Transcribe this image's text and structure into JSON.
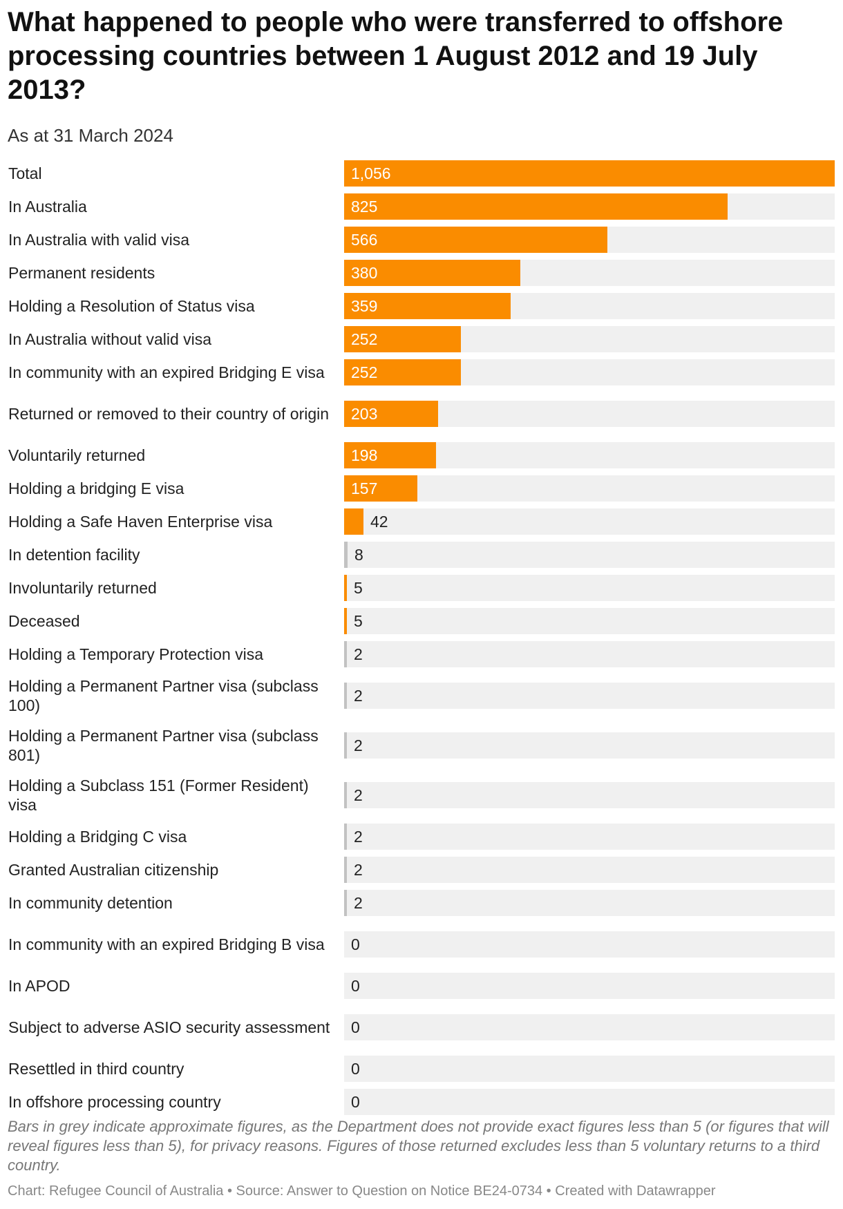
{
  "header": {
    "title": "What happened to people who were transferred to offshore processing countries between 1 August 2012 and 19 July 2013?",
    "subtitle": "As at 31 March 2024"
  },
  "colors": {
    "accent": "#fa8c00",
    "approximate": "#c2c2c2",
    "track": "#f0f0f0"
  },
  "chart_data": {
    "type": "bar",
    "orientation": "horizontal",
    "title": "What happened to people who were transferred to offshore processing countries between 1 August 2012 and 19 July 2013?",
    "subtitle": "As at 31 March 2024",
    "xlim": [
      0,
      1056
    ],
    "rows": [
      {
        "label": "Total",
        "value": 1056,
        "display": "1,056",
        "approximate": false
      },
      {
        "label": "In Australia",
        "value": 825,
        "display": "825",
        "approximate": false
      },
      {
        "label": "In Australia with valid visa",
        "value": 566,
        "display": "566",
        "approximate": false
      },
      {
        "label": "Permanent residents",
        "value": 380,
        "display": "380",
        "approximate": false
      },
      {
        "label": "Holding a Resolution of Status visa",
        "value": 359,
        "display": "359",
        "approximate": false
      },
      {
        "label": "In Australia without valid visa",
        "value": 252,
        "display": "252",
        "approximate": false
      },
      {
        "label": "In community with an expired Bridging E visa",
        "value": 252,
        "display": "252",
        "approximate": false
      },
      {
        "label": "Returned or removed to their country of origin",
        "value": 203,
        "display": "203",
        "approximate": false
      },
      {
        "label": "Voluntarily returned",
        "value": 198,
        "display": "198",
        "approximate": false
      },
      {
        "label": "Holding a bridging E visa",
        "value": 157,
        "display": "157",
        "approximate": false
      },
      {
        "label": "Holding a Safe Haven Enterprise visa",
        "value": 42,
        "display": "42",
        "approximate": false
      },
      {
        "label": "In detention facility",
        "value": 8,
        "display": "8",
        "approximate": true
      },
      {
        "label": "Involuntarily returned",
        "value": 5,
        "display": "5",
        "approximate": false
      },
      {
        "label": "Deceased",
        "value": 5,
        "display": "5",
        "approximate": false
      },
      {
        "label": "Holding a Temporary Protection visa",
        "value": 2,
        "display": "2",
        "approximate": true
      },
      {
        "label": "Holding a Permanent Partner visa (subclass 100)",
        "value": 2,
        "display": "2",
        "approximate": true
      },
      {
        "label": "Holding a Permanent Partner visa (subclass 801)",
        "value": 2,
        "display": "2",
        "approximate": true
      },
      {
        "label": "Holding a Subclass 151 (Former Resident) visa",
        "value": 2,
        "display": "2",
        "approximate": true
      },
      {
        "label": "Holding a Bridging C visa",
        "value": 2,
        "display": "2",
        "approximate": true
      },
      {
        "label": "Granted Australian citizenship",
        "value": 2,
        "display": "2",
        "approximate": true
      },
      {
        "label": "In community detention",
        "value": 2,
        "display": "2",
        "approximate": true
      },
      {
        "label": "In community with an expired Bridging B visa",
        "value": 0,
        "display": "0",
        "approximate": false
      },
      {
        "label": "In APOD",
        "value": 0,
        "display": "0",
        "approximate": false
      },
      {
        "label": "Subject to adverse ASIO security assessment",
        "value": 0,
        "display": "0",
        "approximate": false
      },
      {
        "label": "Resettled in third country",
        "value": 0,
        "display": "0",
        "approximate": false
      },
      {
        "label": "In offshore processing country",
        "value": 0,
        "display": "0",
        "approximate": false
      }
    ]
  },
  "notes": "Bars in grey indicate approximate figures, as the Department does not provide exact figures less than 5 (or figures that will reveal figures less than 5), for privacy reasons. Figures of those returned excludes less than 5 voluntary returns to a third country.",
  "footer": {
    "chart_credit": "Chart: Refugee Council of Australia",
    "separator": " • ",
    "source": "Source: Answer to Question on Notice BE24-0734",
    "tool": "Created with Datawrapper"
  }
}
